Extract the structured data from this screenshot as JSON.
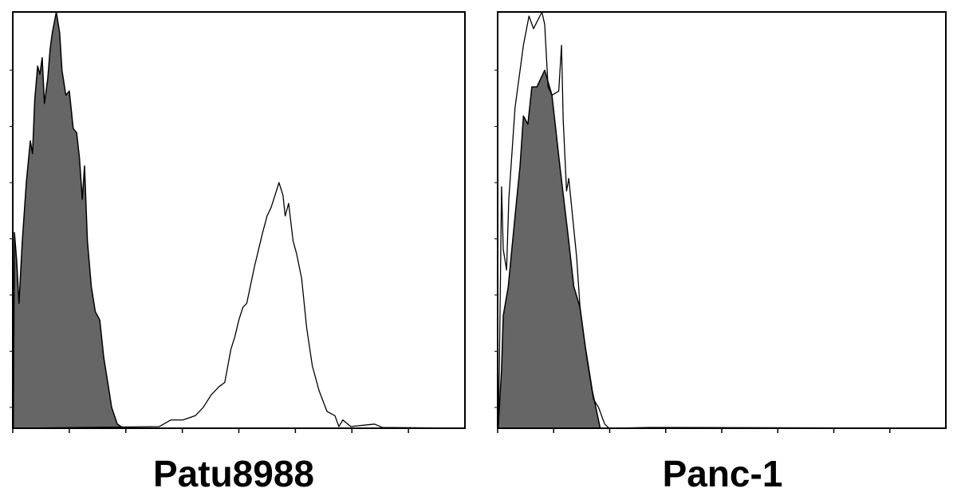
{
  "chart_data": [
    {
      "type": "area",
      "title": "Patu8988",
      "xlabel": "",
      "ylabel": "",
      "xlim": [
        0,
        8
      ],
      "ylim": [
        0,
        100
      ],
      "x_ticks": [
        0,
        1,
        2,
        3,
        4,
        5,
        6,
        7
      ],
      "y_ticks": [
        5,
        18.5,
        32,
        45.5,
        59,
        72.5,
        86
      ],
      "grid": false,
      "colors": {
        "filled": "#666666",
        "outline": "#000000",
        "frame": "#000000"
      },
      "series": [
        {
          "style": "filled",
          "x": [
            0.01,
            0.03,
            0.07,
            0.11,
            0.17,
            0.24,
            0.31,
            0.35,
            0.39,
            0.44,
            0.48,
            0.52,
            0.56,
            0.62,
            0.66,
            0.7,
            0.77,
            0.83,
            0.87,
            0.94,
            1.0,
            1.07,
            1.13,
            1.18,
            1.23,
            1.27,
            1.32,
            1.39,
            1.46,
            1.54,
            1.61,
            1.68,
            1.75,
            1.85,
            1.96
          ],
          "y": [
            0,
            47,
            40,
            30,
            45,
            59,
            69,
            66,
            79,
            87,
            85,
            89,
            78,
            84,
            91,
            95,
            100,
            95,
            86,
            80,
            81,
            72,
            71,
            65,
            55,
            63,
            45,
            34,
            28,
            26,
            17,
            11,
            5,
            1,
            0
          ]
        },
        {
          "style": "outline",
          "x": [
            0,
            2.59,
            2.8,
            3.01,
            3.23,
            3.37,
            3.51,
            3.65,
            3.75,
            3.86,
            3.93,
            4.0,
            4.07,
            4.14,
            4.28,
            4.42,
            4.5,
            4.57,
            4.64,
            4.71,
            4.78,
            4.82,
            4.88,
            4.96,
            5.02,
            5.11,
            5.2,
            5.3,
            5.42,
            5.56,
            5.7,
            5.77,
            5.84,
            5.98,
            6.4,
            6.54,
            8.0
          ],
          "y": [
            0,
            0.4,
            2,
            2,
            3,
            5,
            8,
            10,
            11,
            19,
            22,
            26,
            29,
            30,
            39,
            47,
            51,
            53,
            56,
            59,
            56,
            51,
            54,
            45,
            42,
            36,
            24,
            15,
            9,
            4,
            3,
            0.4,
            2,
            0.4,
            1,
            0.2,
            0
          ]
        }
      ]
    },
    {
      "type": "area",
      "title": "Panc-1",
      "xlabel": "",
      "ylabel": "",
      "xlim": [
        0,
        8
      ],
      "ylim": [
        0,
        100
      ],
      "x_ticks": [
        0,
        1,
        2,
        3,
        4,
        5,
        6,
        7
      ],
      "y_ticks": [
        5,
        18.5,
        32,
        45.5,
        59,
        72.5,
        86
      ],
      "grid": false,
      "colors": {
        "filled": "#666666",
        "outline": "#000000",
        "frame": "#000000"
      },
      "series": [
        {
          "style": "filled",
          "x": [
            0.01,
            0.07,
            0.1,
            0.19,
            0.26,
            0.34,
            0.4,
            0.46,
            0.54,
            0.61,
            0.7,
            0.84,
            0.97,
            1.11,
            1.26,
            1.36,
            1.47,
            1.56,
            1.69,
            1.83
          ],
          "y": [
            0,
            14,
            27,
            34,
            44,
            55,
            63,
            75,
            73,
            82,
            82,
            86,
            80,
            63,
            46,
            34,
            29,
            20,
            9,
            0
          ]
        },
        {
          "style": "outline",
          "x": [
            0.01,
            0.03,
            0.07,
            0.1,
            0.16,
            0.2,
            0.31,
            0.46,
            0.56,
            0.64,
            0.79,
            0.84,
            0.9,
            0.97,
            1.09,
            1.14,
            1.17,
            1.23,
            1.27,
            1.41,
            1.47,
            1.59,
            1.71,
            1.8,
            1.91,
            1.99,
            2.73,
            8.0
          ],
          "y": [
            0,
            14,
            58,
            43,
            38,
            55,
            77,
            92,
            99,
            96,
            100,
            97,
            82,
            80,
            81,
            92,
            74,
            57,
            60,
            41,
            29,
            17,
            7,
            5,
            1,
            0,
            0.2,
            0
          ]
        }
      ]
    }
  ]
}
